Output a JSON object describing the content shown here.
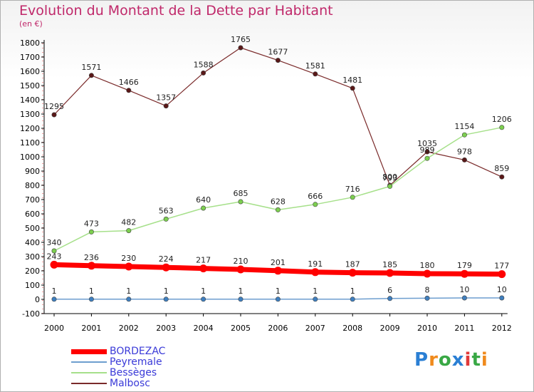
{
  "title": "Evolution du Montant de la Dette par Habitant",
  "subtitle": "(en €)",
  "logo": {
    "text": "Proxiti",
    "colors": [
      "#2a7fd4",
      "#f08a1c",
      "#39a845",
      "#2a7fd4",
      "#e03a3a",
      "#39a845",
      "#f08a1c"
    ]
  },
  "chart_data": {
    "type": "line",
    "title": "Evolution du Montant de la Dette par Habitant",
    "subtitle": "(en €)",
    "x": [
      "2000",
      "2001",
      "2002",
      "2003",
      "2004",
      "2005",
      "2006",
      "2007",
      "2008",
      "2009",
      "2010",
      "2011",
      "2012"
    ],
    "yticks": [
      "-100",
      "0",
      "100",
      "200",
      "300",
      "400",
      "500",
      "600",
      "700",
      "800",
      "900",
      "1000",
      "1100",
      "1200",
      "1300",
      "1400",
      "1500",
      "1600",
      "1700",
      "1800"
    ],
    "ylim": [
      -100,
      1800
    ],
    "grid": false,
    "legend": "bottom-left",
    "series": [
      {
        "name": "BORDEZAC",
        "color": "#ff0000",
        "width": 7,
        "values": [
          243,
          236,
          230,
          224,
          217,
          210,
          201,
          191,
          187,
          185,
          180,
          179,
          177
        ],
        "labels": [
          "243",
          "236",
          "230",
          "224",
          "217",
          "210",
          "201",
          "191",
          "187",
          "185",
          "180",
          "179",
          "177"
        ]
      },
      {
        "name": "Peyremale",
        "color": "#6d9ecf",
        "width": 1.5,
        "marker": "#3f7fbf",
        "values": [
          1,
          1,
          1,
          1,
          1,
          1,
          1,
          1,
          1,
          6,
          8,
          10,
          10
        ],
        "labels": [
          "1",
          "1",
          "1",
          "1",
          "1",
          "1",
          "1",
          "1",
          "1",
          "6",
          "8",
          "10",
          "10"
        ]
      },
      {
        "name": "Bessèges",
        "color": "#a6e08a",
        "width": 1.5,
        "marker": "#7ccf4f",
        "values": [
          340,
          473,
          482,
          563,
          640,
          685,
          628,
          666,
          716,
          793,
          989,
          1154,
          1206
        ],
        "labels": [
          "340",
          "473",
          "482",
          "563",
          "640",
          "685",
          "628",
          "666",
          "716",
          "793",
          "989",
          "1154",
          "1206"
        ]
      },
      {
        "name": "Malbosc",
        "color": "#7a2a2a",
        "width": 1.2,
        "marker": "#5a1818",
        "values": [
          1295,
          1571,
          1466,
          1357,
          1588,
          1765,
          1677,
          1581,
          1481,
          800,
          1035,
          978,
          859
        ],
        "labels": [
          "1295",
          "1571",
          "1466",
          "1357",
          "1588",
          "1765",
          "1677",
          "1581",
          "1481",
          "800",
          "1035",
          "978",
          "859"
        ]
      }
    ]
  }
}
